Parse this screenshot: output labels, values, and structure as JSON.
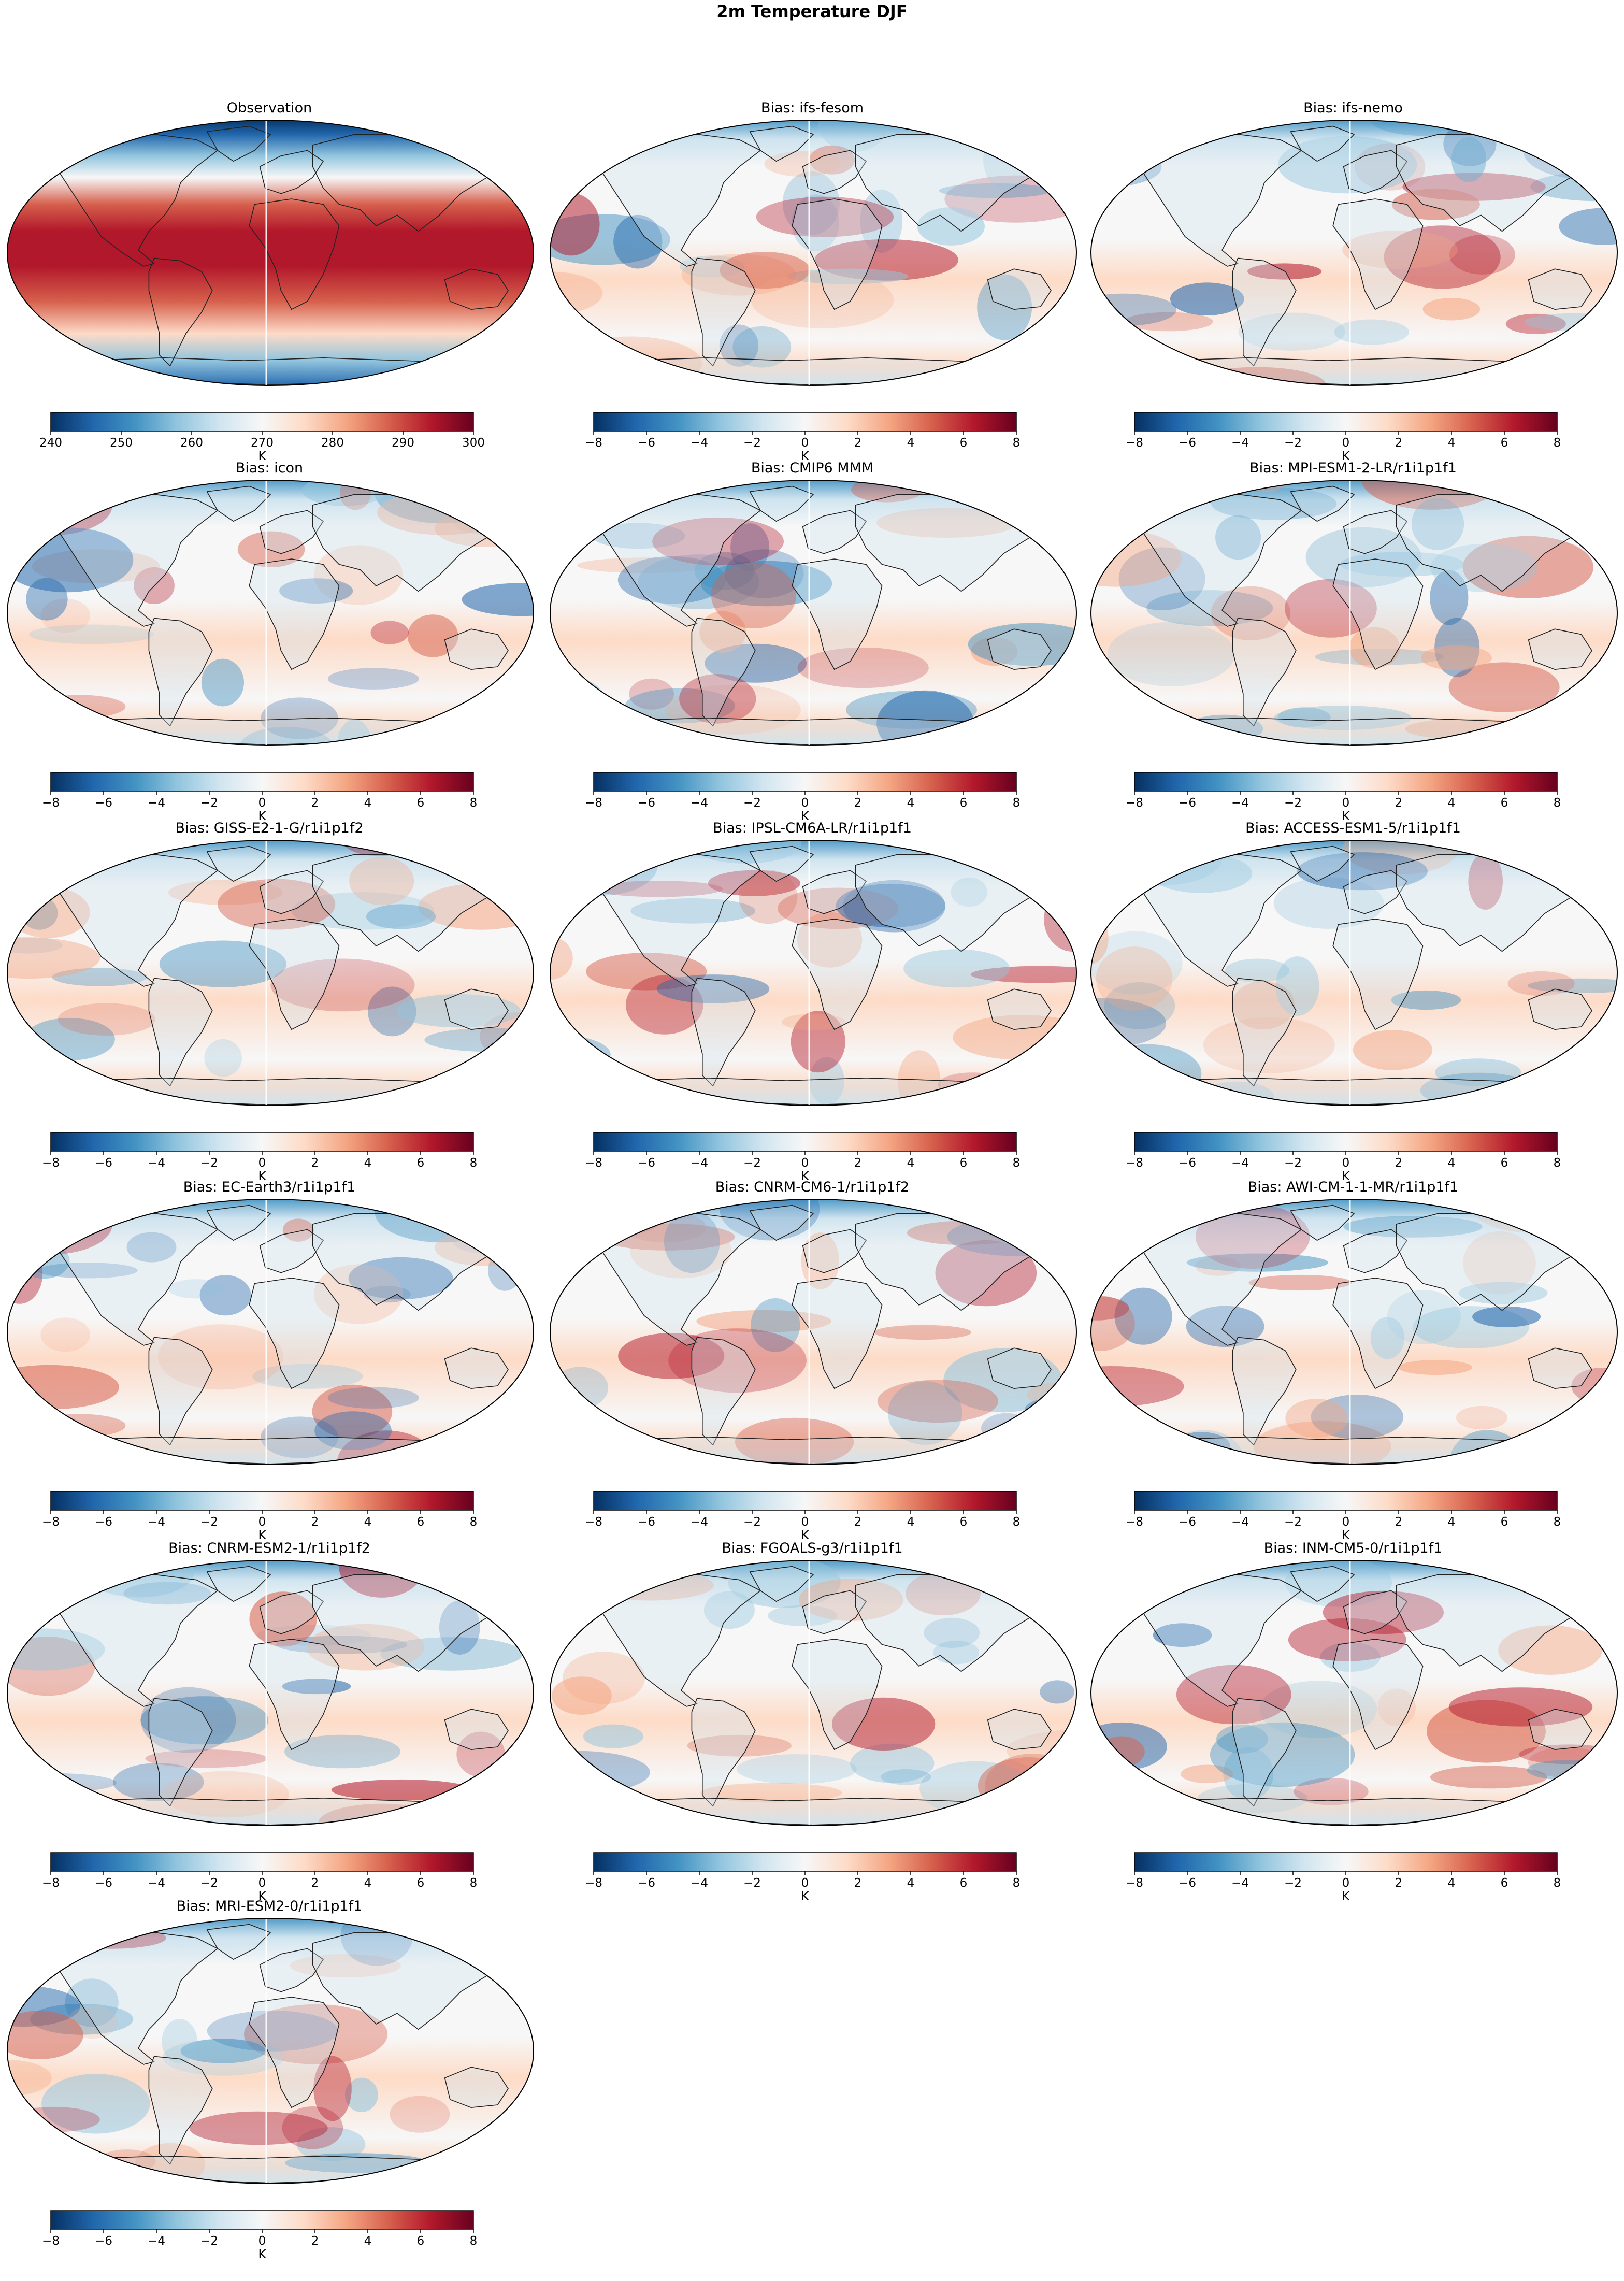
{
  "figure": {
    "title": "2m Temperature DJF"
  },
  "colors": {
    "cmap": [
      "#053061",
      "#2166ac",
      "#4393c3",
      "#92c5de",
      "#d1e5f0",
      "#f7f7f7",
      "#fddbc7",
      "#f4a582",
      "#d6604d",
      "#b2182b",
      "#67001f"
    ],
    "coastline": "#222222",
    "map_border": "#000000",
    "land_tint": "#cfe1ee"
  },
  "panels": [
    {
      "title": "Observation",
      "field": "observation",
      "colorbar": {
        "ticks": [
          "240",
          "250",
          "260",
          "270",
          "280",
          "290",
          "300"
        ],
        "label": "K"
      }
    },
    {
      "title": "Bias: ifs-fesom",
      "field": "bias",
      "colorbar": {
        "ticks": [
          "−8",
          "−6",
          "−4",
          "−2",
          "0",
          "2",
          "4",
          "6",
          "8"
        ],
        "label": "K"
      }
    },
    {
      "title": "Bias: ifs-nemo",
      "field": "bias",
      "colorbar": {
        "ticks": [
          "−8",
          "−6",
          "−4",
          "−2",
          "0",
          "2",
          "4",
          "6",
          "8"
        ],
        "label": "K"
      }
    },
    {
      "title": "Bias: icon",
      "field": "bias",
      "colorbar": {
        "ticks": [
          "−8",
          "−6",
          "−4",
          "−2",
          "0",
          "2",
          "4",
          "6",
          "8"
        ],
        "label": "K"
      }
    },
    {
      "title": "Bias: CMIP6 MMM",
      "field": "bias",
      "colorbar": {
        "ticks": [
          "−8",
          "−6",
          "−4",
          "−2",
          "0",
          "2",
          "4",
          "6",
          "8"
        ],
        "label": "K"
      }
    },
    {
      "title": "Bias: MPI-ESM1-2-LR/r1i1p1f1",
      "field": "bias",
      "colorbar": {
        "ticks": [
          "−8",
          "−6",
          "−4",
          "−2",
          "0",
          "2",
          "4",
          "6",
          "8"
        ],
        "label": "K"
      }
    },
    {
      "title": "Bias: GISS-E2-1-G/r1i1p1f2",
      "field": "bias",
      "colorbar": {
        "ticks": [
          "−8",
          "−6",
          "−4",
          "−2",
          "0",
          "2",
          "4",
          "6",
          "8"
        ],
        "label": "K"
      }
    },
    {
      "title": "Bias: IPSL-CM6A-LR/r1i1p1f1",
      "field": "bias",
      "colorbar": {
        "ticks": [
          "−8",
          "−6",
          "−4",
          "−2",
          "0",
          "2",
          "4",
          "6",
          "8"
        ],
        "label": "K"
      }
    },
    {
      "title": "Bias: ACCESS-ESM1-5/r1i1p1f1",
      "field": "bias",
      "colorbar": {
        "ticks": [
          "−8",
          "−6",
          "−4",
          "−2",
          "0",
          "2",
          "4",
          "6",
          "8"
        ],
        "label": "K"
      }
    },
    {
      "title": "Bias: EC-Earth3/r1i1p1f1",
      "field": "bias",
      "colorbar": {
        "ticks": [
          "−8",
          "−6",
          "−4",
          "−2",
          "0",
          "2",
          "4",
          "6",
          "8"
        ],
        "label": "K"
      }
    },
    {
      "title": "Bias: CNRM-CM6-1/r1i1p1f2",
      "field": "bias",
      "colorbar": {
        "ticks": [
          "−8",
          "−6",
          "−4",
          "−2",
          "0",
          "2",
          "4",
          "6",
          "8"
        ],
        "label": "K"
      }
    },
    {
      "title": "Bias: AWI-CM-1-1-MR/r1i1p1f1",
      "field": "bias",
      "colorbar": {
        "ticks": [
          "−8",
          "−6",
          "−4",
          "−2",
          "0",
          "2",
          "4",
          "6",
          "8"
        ],
        "label": "K"
      }
    },
    {
      "title": "Bias: CNRM-ESM2-1/r1i1p1f2",
      "field": "bias",
      "colorbar": {
        "ticks": [
          "−8",
          "−6",
          "−4",
          "−2",
          "0",
          "2",
          "4",
          "6",
          "8"
        ],
        "label": "K"
      }
    },
    {
      "title": "Bias: FGOALS-g3/r1i1p1f1",
      "field": "bias",
      "colorbar": {
        "ticks": [
          "−8",
          "−6",
          "−4",
          "−2",
          "0",
          "2",
          "4",
          "6",
          "8"
        ],
        "label": "K"
      }
    },
    {
      "title": "Bias: INM-CM5-0/r1i1p1f1",
      "field": "bias",
      "colorbar": {
        "ticks": [
          "−8",
          "−6",
          "−4",
          "−2",
          "0",
          "2",
          "4",
          "6",
          "8"
        ],
        "label": "K"
      }
    },
    {
      "title": "Bias: MRI-ESM2-0/r1i1p1f1",
      "field": "bias",
      "colorbar": {
        "ticks": [
          "−8",
          "−6",
          "−4",
          "−2",
          "0",
          "2",
          "4",
          "6",
          "8"
        ],
        "label": "K"
      }
    }
  ]
}
